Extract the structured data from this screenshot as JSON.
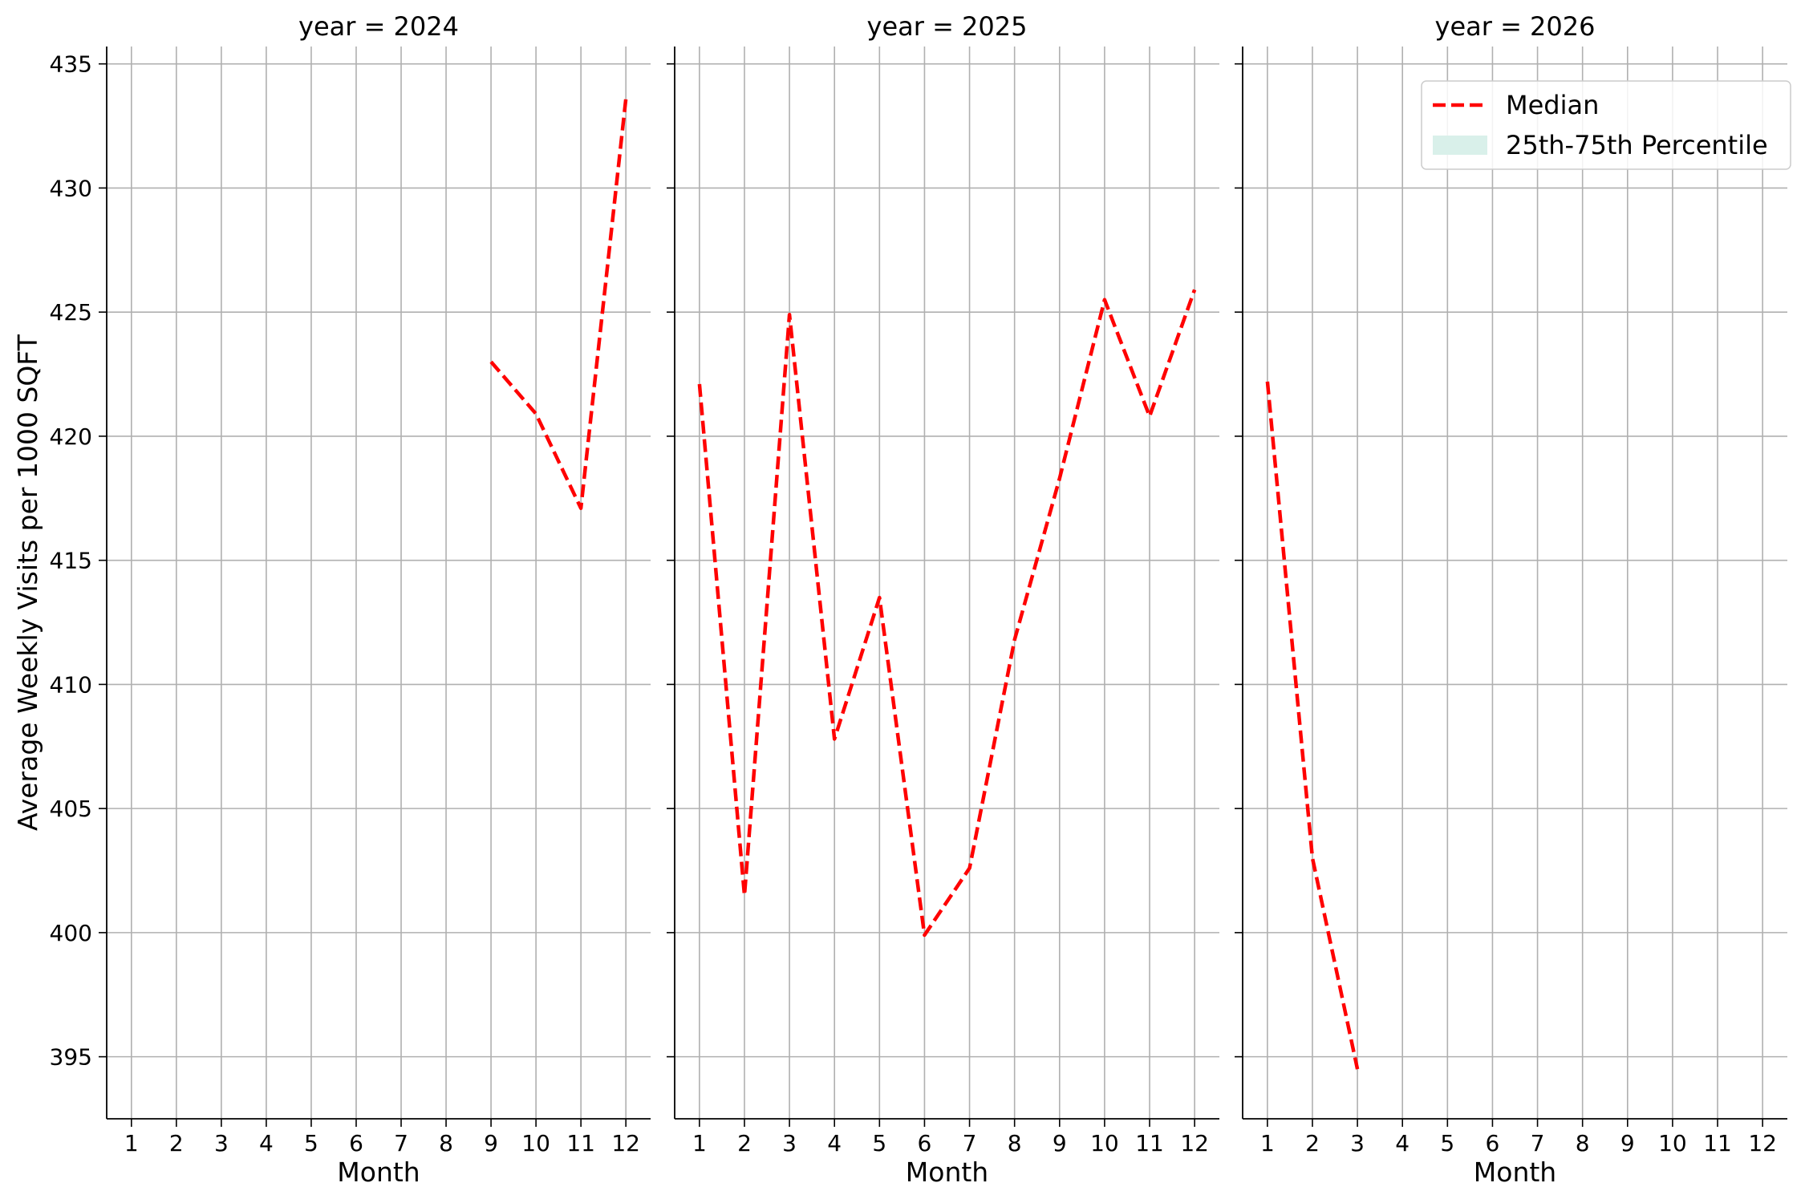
{
  "chart_data": [
    {
      "type": "line",
      "title": "year = 2024",
      "xlabel": "Month",
      "ylabel": "Average Weekly Visits per 1000 SQFT",
      "x_ticks": [
        1,
        2,
        3,
        4,
        5,
        6,
        7,
        8,
        9,
        10,
        11,
        12
      ],
      "ylim": [
        392.5,
        435.7
      ],
      "y_ticks": [
        395,
        400,
        405,
        410,
        415,
        420,
        425,
        430,
        435
      ],
      "grid": true,
      "series": [
        {
          "name": "Median",
          "color": "#ff0000",
          "style": "dashed",
          "points": [
            {
              "x": 9,
              "y": 423.0
            },
            {
              "x": 10,
              "y": 420.9
            },
            {
              "x": 11,
              "y": 417.1
            },
            {
              "x": 12,
              "y": 433.6
            }
          ]
        }
      ]
    },
    {
      "type": "line",
      "title": "year = 2025",
      "xlabel": "Month",
      "ylabel": "",
      "x_ticks": [
        1,
        2,
        3,
        4,
        5,
        6,
        7,
        8,
        9,
        10,
        11,
        12
      ],
      "ylim": [
        392.5,
        435.7
      ],
      "y_ticks": [
        395,
        400,
        405,
        410,
        415,
        420,
        425,
        430,
        435
      ],
      "grid": true,
      "series": [
        {
          "name": "Median",
          "color": "#ff0000",
          "style": "dashed",
          "points": [
            {
              "x": 1,
              "y": 422.1
            },
            {
              "x": 2,
              "y": 401.5
            },
            {
              "x": 3,
              "y": 424.9
            },
            {
              "x": 4,
              "y": 407.8
            },
            {
              "x": 5,
              "y": 413.5
            },
            {
              "x": 6,
              "y": 399.9
            },
            {
              "x": 7,
              "y": 402.6
            },
            {
              "x": 8,
              "y": 411.8
            },
            {
              "x": 9,
              "y": 418.3
            },
            {
              "x": 10,
              "y": 425.5
            },
            {
              "x": 11,
              "y": 420.8
            },
            {
              "x": 12,
              "y": 425.9
            }
          ]
        }
      ]
    },
    {
      "type": "line",
      "title": "year = 2026",
      "xlabel": "Month",
      "ylabel": "",
      "x_ticks": [
        1,
        2,
        3,
        4,
        5,
        6,
        7,
        8,
        9,
        10,
        11,
        12
      ],
      "ylim": [
        392.5,
        435.7
      ],
      "y_ticks": [
        395,
        400,
        405,
        410,
        415,
        420,
        425,
        430,
        435
      ],
      "grid": true,
      "series": [
        {
          "name": "Median",
          "color": "#ff0000",
          "style": "dashed",
          "points": [
            {
              "x": 1,
              "y": 422.2
            },
            {
              "x": 2,
              "y": 403.0
            },
            {
              "x": 3,
              "y": 394.5
            }
          ]
        }
      ]
    }
  ],
  "legend": {
    "placement": "top-right",
    "entries": [
      {
        "label": "Median",
        "kind": "line",
        "color": "#ff0000"
      },
      {
        "label": "25th-75th Percentile",
        "kind": "patch",
        "color": "#d9f0ea"
      }
    ]
  },
  "colors": {
    "median_line": "#ff0000",
    "percentile_band": "#d9f0ea",
    "grid": "#b0b0b0",
    "axis": "#000000"
  }
}
